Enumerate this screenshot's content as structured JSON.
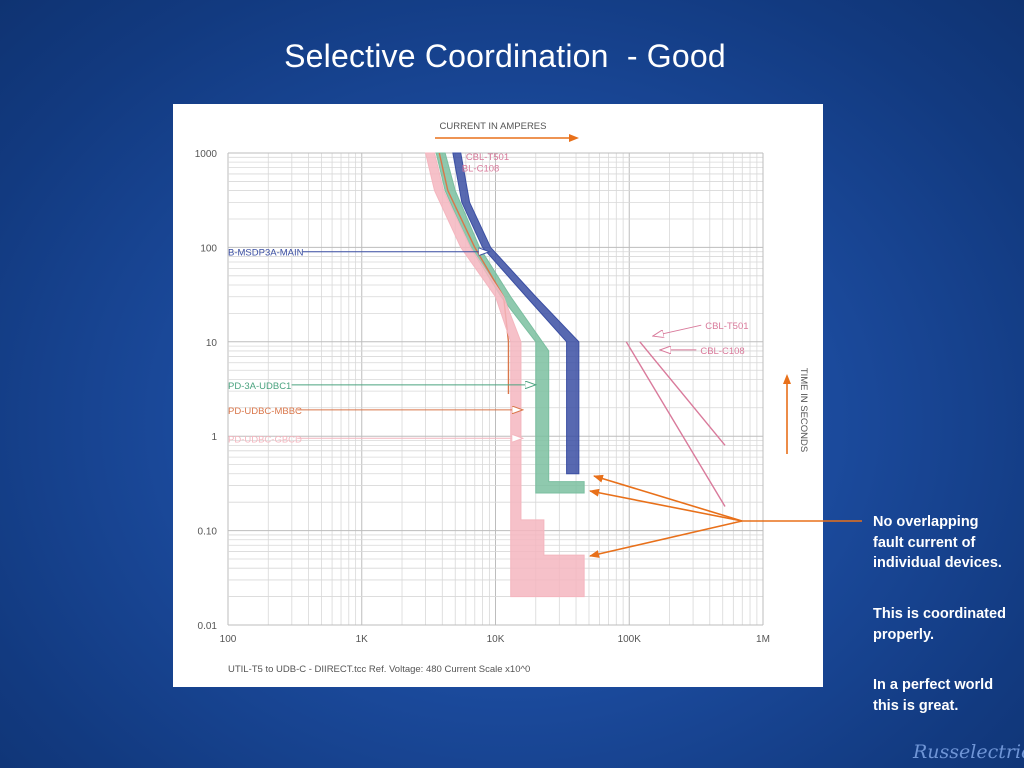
{
  "slide": {
    "title": "Selective Coordination  - Good",
    "notes": [
      "No overlapping fault current of individual devices.",
      "This is coordinated properly.",
      "In a perfect world this is great."
    ],
    "brand": "Russelectric"
  },
  "colors": {
    "slide_bg": "#1b4a9c",
    "arrow_orange": "#e8701a",
    "blue_curve": "#3b4fa3",
    "green_curve": "#7bbfa0",
    "pink_curve": "#f4b6bf",
    "pink_line": "#d97a9b",
    "orange_label": "#d9764a"
  },
  "chart_data": {
    "type": "line",
    "xlabel": "CURRENT IN AMPERES",
    "ylabel": "TIME IN SECONDS",
    "x_scale": "log",
    "y_scale": "log",
    "xlim": [
      100,
      1000000
    ],
    "ylim": [
      0.01,
      1000
    ],
    "grid": true,
    "x_tick_labels": [
      "100",
      "1K",
      "10K",
      "100K",
      "1M"
    ],
    "x_ticks": [
      100,
      1000,
      10000,
      100000,
      1000000
    ],
    "y_tick_labels": [
      "1000",
      "100",
      "10",
      "1",
      "0.10",
      "0.01"
    ],
    "y_ticks": [
      1000,
      100,
      10,
      1,
      0.1,
      0.01
    ],
    "footer": "UTIL-T5 to UDB-C - DIIRECT.tcc   Ref. Voltage: 480   Current Scale x10^0",
    "series": [
      {
        "name": "B-MSDP3A-MAIN",
        "color": "#3b4fa3",
        "band": true,
        "points": [
          [
            4800,
            1000
          ],
          [
            5600,
            300
          ],
          [
            8000,
            100
          ],
          [
            17000,
            30
          ],
          [
            34000,
            10
          ],
          [
            34000,
            0.4
          ]
        ],
        "upper_points": [
          [
            5500,
            1000
          ],
          [
            6400,
            300
          ],
          [
            9200,
            100
          ],
          [
            20000,
            30
          ],
          [
            42000,
            10
          ],
          [
            42000,
            0.4
          ]
        ]
      },
      {
        "name": "PD-3A-UDBC1",
        "color": "#7bbfa0",
        "band": true,
        "points": [
          [
            3600,
            1000
          ],
          [
            4200,
            400
          ],
          [
            6500,
            100
          ],
          [
            11000,
            30
          ],
          [
            20000,
            10
          ],
          [
            20000,
            0.25
          ]
        ],
        "upper_points": [
          [
            4200,
            1000
          ],
          [
            5000,
            400
          ],
          [
            7600,
            100
          ],
          [
            13000,
            30
          ],
          [
            25000,
            8
          ],
          [
            25000,
            0.33
          ],
          [
            46000,
            0.33
          ],
          [
            46000,
            0.25
          ]
        ]
      },
      {
        "name": "PD-UDBC-MBBC",
        "color": "#d9764a",
        "band": false,
        "points": [
          [
            3800,
            1000
          ],
          [
            4400,
            400
          ],
          [
            7000,
            100
          ],
          [
            11500,
            30
          ],
          [
            12500,
            10
          ],
          [
            12500,
            2.8
          ]
        ]
      },
      {
        "name": "PD-UDBC-GBCD",
        "color": "#f4b6bf",
        "band": true,
        "points": [
          [
            3000,
            1000
          ],
          [
            3500,
            400
          ],
          [
            5500,
            100
          ],
          [
            10000,
            30
          ],
          [
            13000,
            10
          ],
          [
            13000,
            0.02
          ]
        ],
        "upper_points": [
          [
            3500,
            1000
          ],
          [
            4100,
            400
          ],
          [
            6500,
            100
          ],
          [
            11500,
            30
          ],
          [
            15500,
            10
          ],
          [
            15500,
            0.13
          ],
          [
            23000,
            0.13
          ],
          [
            23000,
            0.055
          ],
          [
            46000,
            0.055
          ],
          [
            46000,
            0.02
          ]
        ]
      },
      {
        "name": "CBL-T501",
        "color": "#d97a9b",
        "band": false,
        "points": [
          [
            95000,
            10
          ],
          [
            520000,
            0.18
          ]
        ]
      },
      {
        "name": "CBL-C108",
        "color": "#d97a9b",
        "band": false,
        "points": [
          [
            120000,
            10
          ],
          [
            520000,
            0.8
          ]
        ]
      }
    ],
    "annotations": [
      {
        "text": "CBL-T501",
        "color": "#d97a9b",
        "x": 6000,
        "y": 930
      },
      {
        "text": "BL-C108",
        "color": "#d97a9b",
        "x": 5600,
        "y": 700
      },
      {
        "text": "B-MSDP3A-MAIN",
        "color": "#3b4fa3",
        "x": 100,
        "y": 90,
        "arrow_to": [
          9000,
          90
        ]
      },
      {
        "text": "PD-3A-UDBC1",
        "color": "#4aa37f",
        "x": 100,
        "y": 3.5,
        "arrow_to": [
          20000,
          3.5
        ]
      },
      {
        "text": "PD-UDBC-MBBC",
        "color": "#d9764a",
        "x": 100,
        "y": 1.9,
        "arrow_to": [
          16000,
          1.9
        ]
      },
      {
        "text": "PD-UDBC-GBCD",
        "color": "#f4b6bf",
        "x": 100,
        "y": 0.95,
        "arrow_to": [
          16000,
          0.95
        ]
      },
      {
        "text": "CBL-T501",
        "color": "#d97a9b",
        "x": 370000,
        "y": 15,
        "arrow_to": [
          150000,
          11.5
        ]
      },
      {
        "text": "CBL-C108",
        "color": "#d97a9b",
        "x": 340000,
        "y": 8.2,
        "arrow_to": [
          170000,
          8.2
        ]
      }
    ]
  }
}
